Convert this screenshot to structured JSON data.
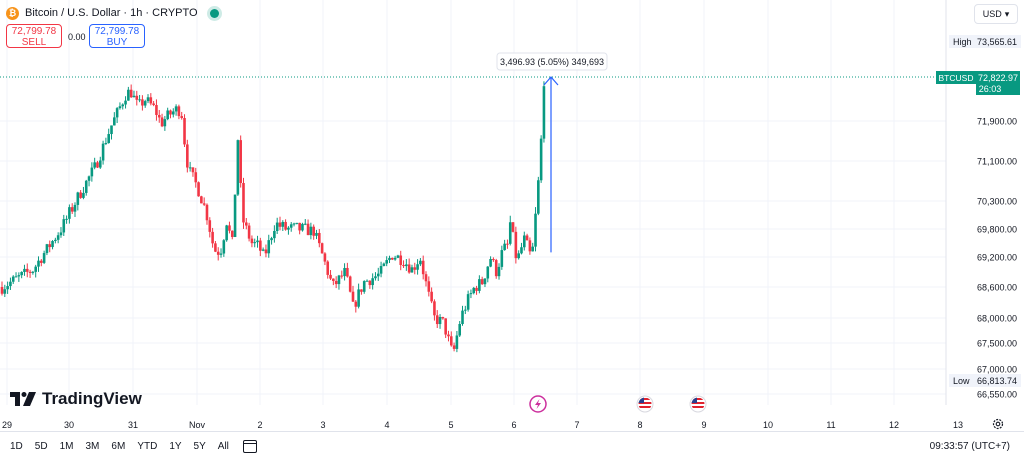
{
  "header": {
    "coin_badge": "₿",
    "title": "Bitcoin / U.S. Dollar · 1h · CRYPTO",
    "sell_price": "72,799.78",
    "sell_label": "SELL",
    "spread": "0.00",
    "buy_price": "72,799.78",
    "buy_label": "BUY",
    "currency": "USD"
  },
  "brand": "TradingView",
  "toolbar": {
    "ranges": [
      "1D",
      "5D",
      "1M",
      "3M",
      "6M",
      "YTD",
      "1Y",
      "5Y",
      "All"
    ],
    "clock": "09:33:57 (UTC+7)"
  },
  "colors": {
    "up": "#089981",
    "down": "#f23645",
    "measure": "#2962ff",
    "grid": "#f0f3fa"
  },
  "chart_data": {
    "type": "candlestick",
    "symbol": "BTCUSD",
    "last_price": "72,822.97",
    "countdown": "26:03",
    "high_label": "High",
    "high": "73,565.61",
    "low_label": "Low",
    "low": "66,813.74",
    "y_ticks": [
      "71,900.00",
      "71,100.00",
      "70,300.00",
      "69,800.00",
      "69,200.00",
      "68,600.00",
      "68,000.00",
      "67,500.00",
      "67,000.00",
      "66,550.00"
    ],
    "x_ticks": [
      "29",
      "30",
      "31",
      "Nov",
      "2",
      "3",
      "4",
      "5",
      "6",
      "7",
      "8",
      "9",
      "10",
      "11",
      "12",
      "13"
    ],
    "measure_label": "3,496.93 (5.05%) 349,693",
    "events": [
      "lightning-event-icon",
      "us-flag-event-icon",
      "us-flag-event-icon"
    ],
    "ylim": [
      66550,
      73700
    ],
    "grid": true,
    "close_path": [
      [
        0,
        68600
      ],
      [
        2,
        68950
      ],
      [
        4,
        69900
      ],
      [
        6,
        71000
      ],
      [
        7,
        71800
      ],
      [
        8,
        72500
      ],
      [
        8.3,
        72500
      ],
      [
        8.7,
        72200
      ],
      [
        9.2,
        72350
      ],
      [
        9.8,
        72150
      ],
      [
        10.2,
        71850
      ],
      [
        10.6,
        72000
      ],
      [
        11.2,
        72150
      ],
      [
        11.5,
        72100
      ],
      [
        11.8,
        71200
      ],
      [
        12.0,
        70900
      ],
      [
        12.5,
        70600
      ],
      [
        13.2,
        70000
      ],
      [
        13.6,
        69350
      ],
      [
        14,
        69300
      ],
      [
        14.4,
        69950
      ],
      [
        14.8,
        69450
      ],
      [
        15.1,
        71650
      ],
      [
        15.4,
        70000
      ],
      [
        16,
        69500
      ],
      [
        16.4,
        69450
      ],
      [
        16.8,
        69200
      ],
      [
        17.5,
        69900
      ],
      [
        18.2,
        69800
      ],
      [
        19,
        69800
      ],
      [
        20,
        69750
      ],
      [
        21.2,
        68600
      ],
      [
        22,
        68900
      ],
      [
        22.5,
        68200
      ],
      [
        23.2,
        68700
      ],
      [
        24.2,
        68850
      ],
      [
        25,
        69250
      ],
      [
        25.7,
        69150
      ],
      [
        26.3,
        68950
      ],
      [
        26.8,
        69200
      ],
      [
        27.3,
        68500
      ],
      [
        27.7,
        68000
      ],
      [
        28.3,
        67900
      ],
      [
        28.9,
        67250
      ],
      [
        29.4,
        68000
      ],
      [
        29.8,
        68300
      ],
      [
        30.3,
        68600
      ],
      [
        30.8,
        68700
      ],
      [
        31.3,
        69200
      ],
      [
        31.7,
        68900
      ],
      [
        32.1,
        69350
      ],
      [
        32.4,
        69450
      ],
      [
        32.6,
        69950
      ],
      [
        33,
        69100
      ],
      [
        33.5,
        69600
      ],
      [
        33.9,
        69200
      ],
      [
        34,
        69300
      ],
      [
        34.5,
        71100
      ],
      [
        34.75,
        72823
      ]
    ]
  }
}
